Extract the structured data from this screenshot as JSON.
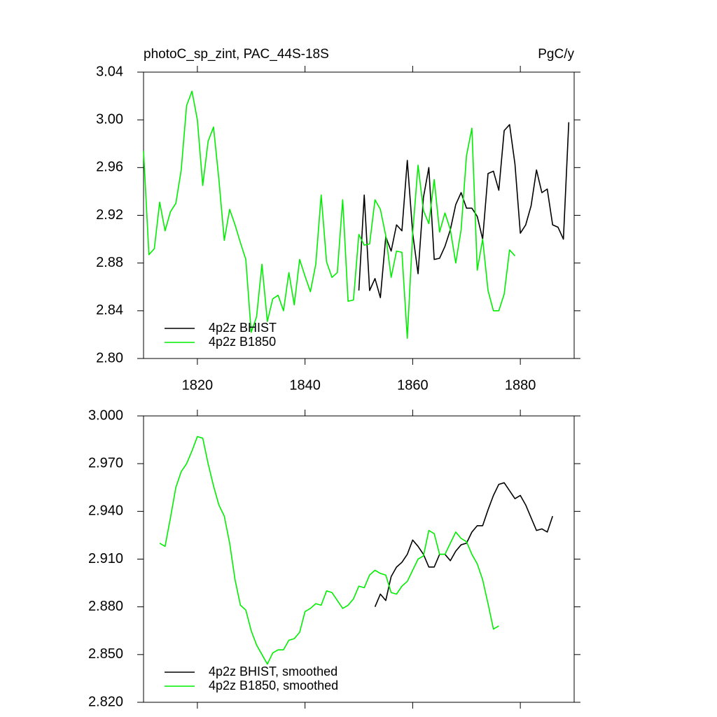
{
  "chart_data": [
    {
      "type": "line",
      "title": "photoC_sp_zint, PAC_44S-18S",
      "units": "PgC/y",
      "xlim": [
        1810,
        1890
      ],
      "xticks": [
        1820,
        1840,
        1860,
        1880
      ],
      "show_xtick_labels": true,
      "ylim": [
        2.8,
        3.04
      ],
      "yticks": [
        {
          "value": 2.8,
          "label": "2.80"
        },
        2.84,
        2.88,
        2.92,
        2.96,
        {
          "value": 3.0,
          "label": "3.00"
        },
        3.04
      ],
      "legend": "lower left",
      "series": [
        {
          "name": "4p2z BHIST",
          "color": "#000000",
          "x": [
            1850,
            1851,
            1852,
            1853,
            1854,
            1855,
            1856,
            1857,
            1858,
            1859,
            1860,
            1861,
            1862,
            1863,
            1864,
            1865,
            1866,
            1867,
            1868,
            1869,
            1870,
            1871,
            1872,
            1873,
            1874,
            1875,
            1876,
            1877,
            1878,
            1879,
            1880,
            1881,
            1882,
            1883,
            1884,
            1885,
            1886,
            1887,
            1888,
            1889
          ],
          "values": [
            2.857,
            2.937,
            2.857,
            2.867,
            2.851,
            2.902,
            2.89,
            2.912,
            2.907,
            2.966,
            2.905,
            2.871,
            2.935,
            2.96,
            2.883,
            2.884,
            2.894,
            2.908,
            2.929,
            2.939,
            2.926,
            2.926,
            2.919,
            2.9,
            2.955,
            2.957,
            2.941,
            2.991,
            2.996,
            2.963,
            2.905,
            2.912,
            2.928,
            2.958,
            2.939,
            2.942,
            2.912,
            2.91,
            2.9,
            2.998
          ]
        },
        {
          "name": "4p2z B1850",
          "color": "#00ee00",
          "x": [
            1810,
            1811,
            1812,
            1813,
            1814,
            1815,
            1816,
            1817,
            1818,
            1819,
            1820,
            1821,
            1822,
            1823,
            1824,
            1825,
            1826,
            1827,
            1828,
            1829,
            1830,
            1831,
            1832,
            1833,
            1834,
            1835,
            1836,
            1837,
            1838,
            1839,
            1840,
            1841,
            1842,
            1843,
            1844,
            1845,
            1846,
            1847,
            1848,
            1849,
            1850,
            1851,
            1852,
            1853,
            1854,
            1855,
            1856,
            1857,
            1858,
            1859,
            1860,
            1861,
            1862,
            1863,
            1864,
            1865,
            1866,
            1867,
            1868,
            1869,
            1870,
            1871,
            1872,
            1873,
            1874,
            1875,
            1876,
            1877,
            1878,
            1879
          ],
          "values": [
            2.974,
            2.887,
            2.892,
            2.931,
            2.907,
            2.923,
            2.93,
            2.958,
            3.012,
            3.024,
            3.0,
            2.945,
            2.982,
            2.994,
            2.95,
            2.899,
            2.925,
            2.912,
            2.897,
            2.883,
            2.822,
            2.835,
            2.879,
            2.831,
            2.85,
            2.853,
            2.84,
            2.872,
            2.845,
            2.883,
            2.869,
            2.856,
            2.879,
            2.937,
            2.881,
            2.868,
            2.872,
            2.933,
            2.848,
            2.849,
            2.904,
            2.895,
            2.896,
            2.933,
            2.925,
            2.903,
            2.868,
            2.89,
            2.889,
            2.817,
            2.905,
            2.962,
            2.924,
            2.913,
            2.95,
            2.906,
            2.922,
            2.908,
            2.88,
            2.908,
            2.97,
            2.993,
            2.874,
            2.9,
            2.857,
            2.84,
            2.84,
            2.854,
            2.891,
            2.886
          ]
        }
      ]
    },
    {
      "type": "line",
      "xlim": [
        1810,
        1890
      ],
      "xticks": [
        1820,
        1840,
        1860,
        1880
      ],
      "show_xtick_labels": false,
      "ylim": [
        2.82,
        3.0
      ],
      "yticks": [
        {
          "value": 2.82,
          "label": "2.820"
        },
        {
          "value": 2.85,
          "label": "2.850"
        },
        {
          "value": 2.88,
          "label": "2.880"
        },
        {
          "value": 2.91,
          "label": "2.910"
        },
        {
          "value": 2.94,
          "label": "2.940"
        },
        {
          "value": 2.97,
          "label": "2.970"
        },
        {
          "value": 3.0,
          "label": "3.000"
        }
      ],
      "legend": "lower left",
      "series": [
        {
          "name": "4p2z BHIST, smoothed",
          "color": "#000000",
          "x": [
            1853,
            1854,
            1855,
            1856,
            1857,
            1858,
            1859,
            1860,
            1861,
            1862,
            1863,
            1864,
            1865,
            1866,
            1867,
            1868,
            1869,
            1870,
            1871,
            1872,
            1873,
            1874,
            1875,
            1876,
            1877,
            1878,
            1879,
            1880,
            1881,
            1882,
            1883,
            1884,
            1885,
            1886
          ],
          "values": [
            2.88,
            2.888,
            2.884,
            2.899,
            2.905,
            2.908,
            2.913,
            2.922,
            2.918,
            2.913,
            2.905,
            2.905,
            2.913,
            2.913,
            2.909,
            2.915,
            2.919,
            2.92,
            2.927,
            2.931,
            2.931,
            2.941,
            2.95,
            2.957,
            2.958,
            2.953,
            2.948,
            2.95,
            2.944,
            2.936,
            2.928,
            2.929,
            2.927,
            2.937
          ]
        },
        {
          "name": "4p2z B1850, smoothed",
          "color": "#00ee00",
          "x": [
            1813,
            1814,
            1815,
            1816,
            1817,
            1818,
            1819,
            1820,
            1821,
            1822,
            1823,
            1824,
            1825,
            1826,
            1827,
            1828,
            1829,
            1830,
            1831,
            1832,
            1833,
            1834,
            1835,
            1836,
            1837,
            1838,
            1839,
            1840,
            1841,
            1842,
            1843,
            1844,
            1845,
            1846,
            1847,
            1848,
            1849,
            1850,
            1851,
            1852,
            1853,
            1854,
            1855,
            1856,
            1857,
            1858,
            1859,
            1860,
            1861,
            1862,
            1863,
            1864,
            1865,
            1866,
            1867,
            1868,
            1869,
            1870,
            1871,
            1872,
            1873,
            1874,
            1875,
            1876
          ],
          "values": [
            2.92,
            2.918,
            2.936,
            2.955,
            2.965,
            2.97,
            2.978,
            2.987,
            2.986,
            2.97,
            2.956,
            2.944,
            2.937,
            2.92,
            2.897,
            2.881,
            2.878,
            2.865,
            2.856,
            2.85,
            2.844,
            2.851,
            2.853,
            2.853,
            2.859,
            2.86,
            2.864,
            2.877,
            2.879,
            2.882,
            2.881,
            2.89,
            2.889,
            2.884,
            2.879,
            2.881,
            2.885,
            2.893,
            2.892,
            2.9,
            2.903,
            2.901,
            2.9,
            2.889,
            2.888,
            2.893,
            2.896,
            2.903,
            2.91,
            2.912,
            2.928,
            2.926,
            2.913,
            2.913,
            2.92,
            2.927,
            2.923,
            2.921,
            2.913,
            2.907,
            2.897,
            2.882,
            2.866,
            2.868
          ]
        }
      ]
    }
  ]
}
